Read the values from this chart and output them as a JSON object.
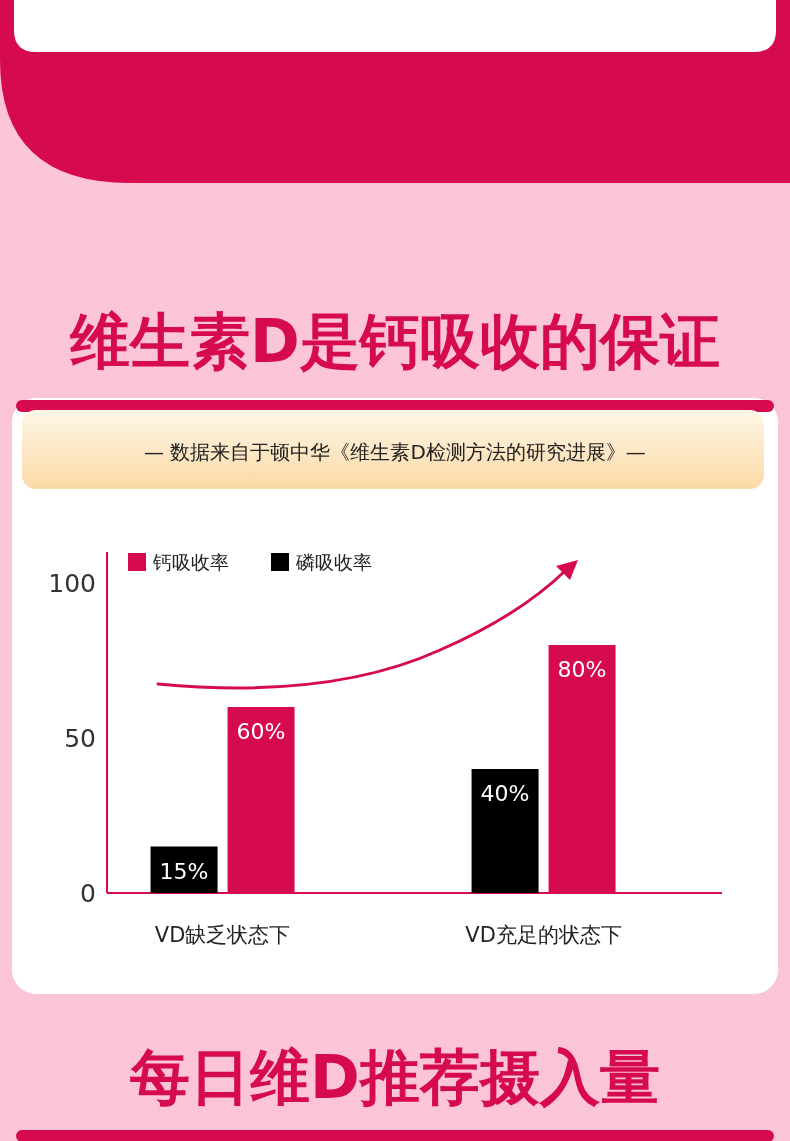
{
  "chart_data": {
    "type": "bar",
    "title": "维生素D是钙吸收的保证",
    "subtitle": "— 数据来自于顿中华《维生素D检测方法的研究进展》—",
    "categories": [
      "VD缺乏状态下",
      "VD充足的状态下"
    ],
    "series": [
      {
        "name": "钙吸收率",
        "color": "#d60a50",
        "values": [
          60,
          80
        ],
        "value_labels": [
          "60%",
          "80%"
        ]
      },
      {
        "name": "磷吸收率",
        "color": "#000000",
        "values": [
          15,
          40
        ],
        "value_labels": [
          "15%",
          "40%"
        ]
      }
    ],
    "ylim": [
      0,
      110
    ],
    "yticks": [
      0,
      50,
      100
    ],
    "grid": false,
    "legend": "top left",
    "annotations": [
      "每日维D推荐摄入量"
    ]
  }
}
